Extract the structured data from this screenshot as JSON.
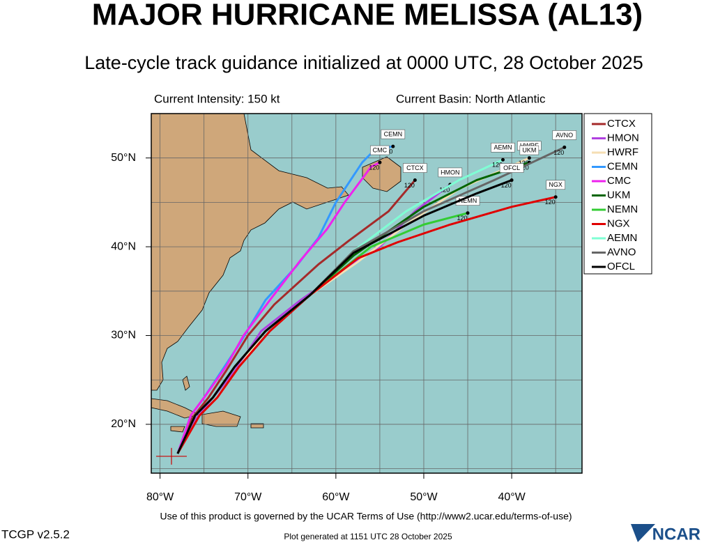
{
  "chart_data": {
    "type": "track-map",
    "title": "MAJOR HURRICANE MELISSA (AL13)",
    "subtitle": "Late-cycle track guidance initialized at 0000 UTC, 28 October 2025",
    "intensity": "Current Intensity: 150 kt",
    "basin": "Current Basin: North Atlantic",
    "footer": "Use of this product is governed by the UCAR Terms of Use (http://www2.ucar.edu/terms-of-use)",
    "version": "TCGP v2.5.2",
    "generated": "Plot generated at 1151 UTC   28 October 2025",
    "logo": "NCAR",
    "xlim": [
      -81,
      -32
    ],
    "ylim": [
      14.5,
      55
    ],
    "xticks": [
      {
        "value": -80,
        "label": "80°W"
      },
      {
        "value": -70,
        "label": "70°W"
      },
      {
        "value": -60,
        "label": "60°W"
      },
      {
        "value": -50,
        "label": "50°W"
      },
      {
        "value": -40,
        "label": "40°W"
      }
    ],
    "yticks": [
      {
        "value": 20,
        "label": "20°N"
      },
      {
        "value": 30,
        "label": "30°N"
      },
      {
        "value": 40,
        "label": "40°N"
      },
      {
        "value": 50,
        "label": "50°N"
      }
    ],
    "xgrid": [
      -80,
      -75,
      -70,
      -65,
      -60,
      -55,
      -50,
      -45,
      -40,
      -35
    ],
    "ygrid": [
      15,
      20,
      25,
      30,
      35,
      40,
      45,
      50
    ],
    "current_position": [
      -78.7,
      16.4
    ],
    "legend": "upper right",
    "series": [
      {
        "name": "CTCX",
        "color": "#a52a2a",
        "end_label": "120",
        "x": [
          -78,
          -76.5,
          -74.5,
          -72.5,
          -70,
          -67,
          -62,
          -58.5,
          -54,
          -51
        ],
        "y": [
          16.7,
          20.5,
          23,
          26,
          30,
          33.5,
          38,
          40.7,
          44,
          47.5
        ]
      },
      {
        "name": "HMON",
        "color": "#b040e0",
        "end_label": "120",
        "x": [
          -78,
          -76,
          -74,
          -71.5,
          -68.5,
          -64,
          -58.5,
          -55,
          -51,
          -47
        ],
        "y": [
          16.7,
          20.5,
          23,
          26,
          30.5,
          34,
          37.8,
          40,
          44,
          47
        ]
      },
      {
        "name": "HWRF",
        "color": "#f5deb3",
        "end_label": "120",
        "x": [
          -78,
          -75.5,
          -73.5,
          -71,
          -68,
          -63,
          -57.5,
          -52,
          -46,
          -38
        ],
        "y": [
          16.7,
          21,
          23,
          26.5,
          30.5,
          34.5,
          38.3,
          42.5,
          46.5,
          50
        ]
      },
      {
        "name": "CEMN",
        "color": "#3399ff",
        "end_label": "120",
        "x": [
          -78,
          -76.5,
          -75,
          -73,
          -71,
          -68,
          -64.5,
          -62,
          -60,
          -57,
          -55.5,
          -53.5
        ],
        "y": [
          16.7,
          21,
          23,
          26,
          29,
          34,
          37.8,
          41,
          45,
          49.5,
          51,
          51.3
        ]
      },
      {
        "name": "CMC",
        "color": "#ee22ee",
        "end_label": "120",
        "x": [
          -78,
          -76.5,
          -75,
          -72.5,
          -70.5,
          -67.5,
          -64,
          -61,
          -59,
          -56,
          -55
        ],
        "y": [
          16.7,
          21,
          23,
          26.5,
          30,
          34,
          38.5,
          42,
          45,
          49,
          49.5
        ]
      },
      {
        "name": "UKM",
        "color": "#006400",
        "end_label": "120",
        "x": [
          -78,
          -76,
          -74,
          -71.5,
          -68,
          -63,
          -58,
          -50,
          -44,
          -38
        ],
        "y": [
          16.7,
          21,
          23,
          26.5,
          30.5,
          34.5,
          39,
          44.5,
          47.5,
          49.5
        ]
      },
      {
        "name": "NEMN",
        "color": "#33cc33",
        "end_label": "120",
        "x": [
          -78,
          -76,
          -74,
          -71.5,
          -68,
          -63,
          -56,
          -50,
          -45
        ],
        "y": [
          16.7,
          21,
          23,
          26.5,
          30.5,
          34.5,
          40,
          42.5,
          43.8
        ]
      },
      {
        "name": "NGX",
        "color": "#e00000",
        "end_label": "120",
        "x": [
          -78,
          -75.5,
          -73.5,
          -71,
          -67.5,
          -63,
          -57.5,
          -53,
          -47,
          -40,
          -35
        ],
        "y": [
          16.7,
          21,
          23,
          26.5,
          30.5,
          34.5,
          38.7,
          40.5,
          42.5,
          44.5,
          45.6
        ]
      },
      {
        "name": "AEMN",
        "color": "#7fffd4",
        "end_label": "120",
        "x": [
          -78,
          -76,
          -74,
          -71.5,
          -68,
          -63,
          -58,
          -52,
          -46,
          -41
        ],
        "y": [
          16.7,
          21,
          23,
          26.5,
          30.5,
          34.5,
          39.5,
          44,
          47.5,
          49.8
        ]
      },
      {
        "name": "AVNO",
        "color": "#666666",
        "end_label": "120",
        "x": [
          -78,
          -76,
          -74,
          -71.5,
          -68,
          -63,
          -58,
          -50,
          -42,
          -34
        ],
        "y": [
          16.7,
          21,
          23,
          26.5,
          30.5,
          34.5,
          39.5,
          44,
          47.5,
          51.2
        ]
      },
      {
        "name": "OFCL",
        "color": "#000000",
        "end_label": "120",
        "x": [
          -78,
          -76,
          -74,
          -71.5,
          -68,
          -63,
          -58,
          -50,
          -44,
          -40
        ],
        "y": [
          16.7,
          21,
          23,
          26.5,
          30.5,
          34.5,
          39.3,
          43.5,
          46,
          47.5
        ]
      }
    ]
  }
}
